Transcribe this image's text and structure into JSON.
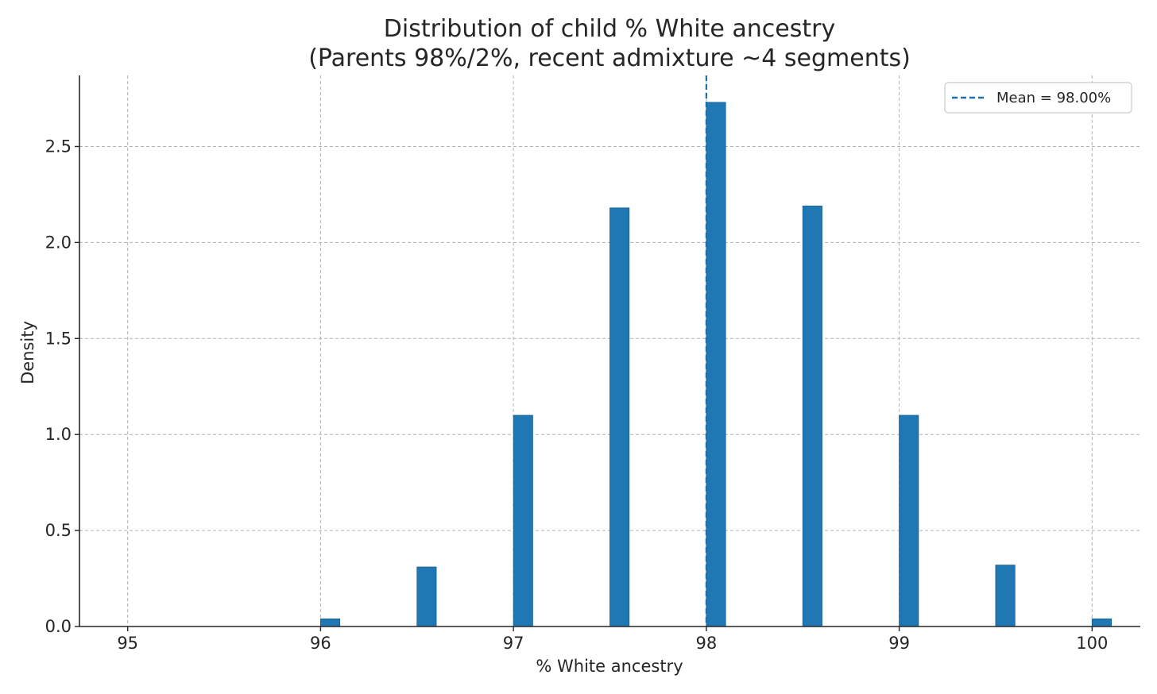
{
  "chart_data": {
    "type": "bar",
    "title_line1": "Distribution of child % White ancestry",
    "title_line2": "(Parents 98%/2%, recent admixture ~4 segments)",
    "xlabel": "% White ancestry",
    "ylabel": "Density",
    "xlim": [
      94.75,
      100.25
    ],
    "ylim": [
      0,
      2.87
    ],
    "xticks": [
      95,
      96,
      97,
      98,
      99,
      100
    ],
    "yticks": [
      0.0,
      0.5,
      1.0,
      1.5,
      2.0,
      2.5
    ],
    "ytick_labels": [
      "0.0",
      "0.5",
      "1.0",
      "1.5",
      "2.0",
      "2.5"
    ],
    "bin_width": 0.1,
    "bars": [
      {
        "x_start": 96.0,
        "value": 0.04
      },
      {
        "x_start": 96.5,
        "value": 0.31
      },
      {
        "x_start": 97.0,
        "value": 1.1
      },
      {
        "x_start": 97.5,
        "value": 2.18
      },
      {
        "x_start": 98.0,
        "value": 2.73
      },
      {
        "x_start": 98.5,
        "value": 2.19
      },
      {
        "x_start": 99.0,
        "value": 1.1
      },
      {
        "x_start": 99.5,
        "value": 0.32
      },
      {
        "x_start": 100.0,
        "value": 0.04
      }
    ],
    "mean_line": {
      "x": 98.0,
      "label": "Mean = 98.00%"
    },
    "legend_position": "top-right",
    "grid": true,
    "colors": {
      "bar": "#1f77b4",
      "bar_edge": "#1a5f8f",
      "mean_line": "#1f6fa8"
    }
  }
}
